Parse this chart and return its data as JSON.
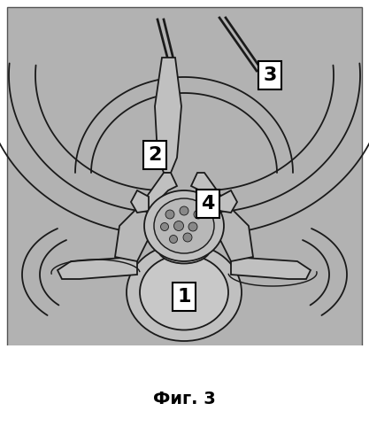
{
  "title": "Фиг. 3",
  "bg_color": "#b2b2b2",
  "white": "#ffffff",
  "line_color": "#1a1a1a",
  "label_1": "1",
  "label_2": "2",
  "label_3": "3",
  "label_4": "4",
  "title_fontsize": 14,
  "label_fontsize": 16,
  "lw": 1.3
}
